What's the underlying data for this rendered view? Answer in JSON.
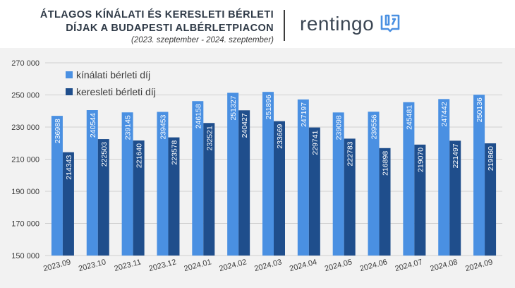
{
  "header": {
    "title_line1": "ÁTLAGOS KÍNÁLATI ÉS KERESLETI BÉRLETI",
    "title_line2": "DÍJAK A BUDAPESTI ALBÉRLETPIACON",
    "subtitle": "(2023. szeptember - 2024. szeptember)",
    "brand": "rentingo",
    "brand_icon": "rentingo-logo-icon"
  },
  "chart_data": {
    "type": "bar",
    "categories": [
      "2023.09",
      "2023.10",
      "2023.11",
      "2023.12",
      "2024.01",
      "2024.02",
      "2024.03",
      "2024.04",
      "2024.05",
      "2024.06",
      "2024.07",
      "2024.08",
      "2024.09"
    ],
    "series": [
      {
        "name": "kínálati bérleti díj",
        "color": "#4a90e2",
        "values": [
          236988,
          240544,
          239145,
          239453,
          246158,
          251327,
          251896,
          247197,
          239098,
          239556,
          245481,
          247442,
          250136
        ]
      },
      {
        "name": "keresleti bérleti díj",
        "color": "#1f4e8c",
        "values": [
          214343,
          222503,
          221640,
          223578,
          232521,
          240427,
          233669,
          229741,
          222783,
          216898,
          219070,
          221497,
          219860
        ]
      }
    ],
    "ylim": [
      150000,
      270000
    ],
    "yticks": [
      150000,
      170000,
      190000,
      210000,
      230000,
      250000,
      270000
    ],
    "ytick_labels": [
      "150 000",
      "170 000",
      "190 000",
      "210 000",
      "230 000",
      "250 000",
      "270 000"
    ],
    "xlabel": "",
    "ylabel": "",
    "grid": true,
    "legend_position": "top-left",
    "background": "#f2f2f2",
    "grid_color": "#d0d0d0",
    "data_labels": "vertical-inside-bar"
  }
}
